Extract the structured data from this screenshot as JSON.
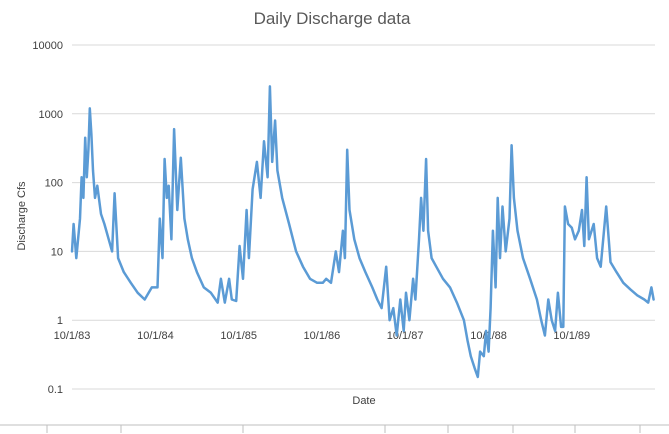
{
  "chart_data": {
    "type": "line",
    "title": "Daily Discharge data",
    "xlabel": "Date",
    "ylabel": "Discharge Cfs",
    "y_scale": "log",
    "ylim": [
      0.1,
      10000
    ],
    "y_ticks": [
      "0.1",
      "1",
      "10",
      "100",
      "1000",
      "10000"
    ],
    "xlim": [
      "1983-10-01",
      "1990-10-01"
    ],
    "x_ticks": [
      "10/1/83",
      "10/1/84",
      "10/1/85",
      "10/1/86",
      "10/1/87",
      "10/1/88",
      "10/1/89"
    ],
    "grid": true,
    "legend": "none",
    "line_color": "#5b9bd5",
    "series": [
      {
        "values": [
          [
            "1983-10-01",
            10
          ],
          [
            "1983-10-08",
            25
          ],
          [
            "1983-10-20",
            8
          ],
          [
            "1983-11-05",
            30
          ],
          [
            "1983-11-12",
            120
          ],
          [
            "1983-11-20",
            60
          ],
          [
            "1983-11-28",
            450
          ],
          [
            "1983-12-05",
            120
          ],
          [
            "1983-12-12",
            300
          ],
          [
            "1983-12-18",
            1200
          ],
          [
            "1983-12-25",
            500
          ],
          [
            "1984-01-01",
            150
          ],
          [
            "1984-01-10",
            60
          ],
          [
            "1984-01-20",
            90
          ],
          [
            "1984-02-05",
            35
          ],
          [
            "1984-02-20",
            25
          ],
          [
            "1984-03-10",
            15
          ],
          [
            "1984-03-25",
            10
          ],
          [
            "1984-04-05",
            70
          ],
          [
            "1984-04-20",
            8
          ],
          [
            "1984-05-15",
            5
          ],
          [
            "1984-06-15",
            3.5
          ],
          [
            "1984-07-15",
            2.5
          ],
          [
            "1984-08-15",
            2.0
          ],
          [
            "1984-09-15",
            3
          ],
          [
            "1984-10-10",
            3
          ],
          [
            "1984-10-20",
            30
          ],
          [
            "1984-11-01",
            8
          ],
          [
            "1984-11-10",
            220
          ],
          [
            "1984-11-20",
            60
          ],
          [
            "1984-11-28",
            90
          ],
          [
            "1984-12-10",
            15
          ],
          [
            "1984-12-22",
            600
          ],
          [
            "1985-01-05",
            40
          ],
          [
            "1985-01-20",
            230
          ],
          [
            "1985-02-05",
            30
          ],
          [
            "1985-02-20",
            15
          ],
          [
            "1985-03-10",
            8
          ],
          [
            "1985-04-01",
            5
          ],
          [
            "1985-05-01",
            3
          ],
          [
            "1985-06-01",
            2.5
          ],
          [
            "1985-07-01",
            1.8
          ],
          [
            "1985-07-15",
            4
          ],
          [
            "1985-08-01",
            1.8
          ],
          [
            "1985-08-20",
            4
          ],
          [
            "1985-09-01",
            2
          ],
          [
            "1985-09-20",
            1.9
          ],
          [
            "1985-10-05",
            12
          ],
          [
            "1985-10-20",
            4
          ],
          [
            "1985-11-05",
            40
          ],
          [
            "1985-11-15",
            8
          ],
          [
            "1985-12-01",
            80
          ],
          [
            "1985-12-20",
            200
          ],
          [
            "1986-01-05",
            60
          ],
          [
            "1986-01-20",
            400
          ],
          [
            "1986-02-05",
            120
          ],
          [
            "1986-02-15",
            2500
          ],
          [
            "1986-02-25",
            200
          ],
          [
            "1986-03-10",
            800
          ],
          [
            "1986-03-20",
            150
          ],
          [
            "1986-04-10",
            60
          ],
          [
            "1986-05-10",
            25
          ],
          [
            "1986-06-10",
            10
          ],
          [
            "1986-07-10",
            6
          ],
          [
            "1986-08-10",
            4
          ],
          [
            "1986-09-10",
            3.5
          ],
          [
            "1986-10-05",
            3.5
          ],
          [
            "1986-10-20",
            4
          ],
          [
            "1986-11-10",
            3.5
          ],
          [
            "1986-12-01",
            10
          ],
          [
            "1986-12-15",
            5
          ],
          [
            "1987-01-01",
            20
          ],
          [
            "1987-01-10",
            8
          ],
          [
            "1987-01-20",
            300
          ],
          [
            "1987-01-30",
            40
          ],
          [
            "1987-02-20",
            15
          ],
          [
            "1987-03-15",
            8
          ],
          [
            "1987-04-10",
            5
          ],
          [
            "1987-05-10",
            3
          ],
          [
            "1987-06-01",
            2
          ],
          [
            "1987-06-20",
            1.5
          ],
          [
            "1987-07-10",
            6
          ],
          [
            "1987-07-25",
            1
          ],
          [
            "1987-08-10",
            1.5
          ],
          [
            "1987-08-25",
            0.6
          ],
          [
            "1987-09-10",
            2
          ],
          [
            "1987-09-25",
            0.7
          ],
          [
            "1987-10-05",
            2.5
          ],
          [
            "1987-10-20",
            1
          ],
          [
            "1987-11-05",
            4
          ],
          [
            "1987-11-15",
            2
          ],
          [
            "1987-12-01",
            15
          ],
          [
            "1987-12-10",
            60
          ],
          [
            "1987-12-20",
            20
          ],
          [
            "1988-01-01",
            220
          ],
          [
            "1988-01-10",
            20
          ],
          [
            "1988-01-25",
            8
          ],
          [
            "1988-02-15",
            6
          ],
          [
            "1988-03-15",
            4
          ],
          [
            "1988-04-15",
            3
          ],
          [
            "1988-05-15",
            1.8
          ],
          [
            "1988-06-15",
            1
          ],
          [
            "1988-07-01",
            0.5
          ],
          [
            "1988-07-15",
            0.3
          ],
          [
            "1988-08-01",
            0.2
          ],
          [
            "1988-08-15",
            0.15
          ],
          [
            "1988-08-25",
            0.35
          ],
          [
            "1988-09-10",
            0.3
          ],
          [
            "1988-09-20",
            0.7
          ],
          [
            "1988-10-01",
            0.35
          ],
          [
            "1988-10-10",
            1.5
          ],
          [
            "1988-10-20",
            20
          ],
          [
            "1988-11-01",
            3
          ],
          [
            "1988-11-10",
            60
          ],
          [
            "1988-11-20",
            8
          ],
          [
            "1988-12-01",
            45
          ],
          [
            "1988-12-15",
            10
          ],
          [
            "1989-01-01",
            30
          ],
          [
            "1989-01-10",
            350
          ],
          [
            "1989-01-20",
            60
          ],
          [
            "1989-02-05",
            20
          ],
          [
            "1989-03-01",
            8
          ],
          [
            "1989-04-01",
            4
          ],
          [
            "1989-05-01",
            2
          ],
          [
            "1989-05-20",
            1
          ],
          [
            "1989-06-05",
            0.6
          ],
          [
            "1989-06-20",
            2
          ],
          [
            "1989-07-05",
            1
          ],
          [
            "1989-07-20",
            0.7
          ],
          [
            "1989-08-01",
            2.5
          ],
          [
            "1989-08-15",
            0.8
          ],
          [
            "1989-08-25",
            0.8
          ],
          [
            "1989-09-01",
            45
          ],
          [
            "1989-09-15",
            25
          ],
          [
            "1989-10-01",
            22
          ],
          [
            "1989-10-15",
            15
          ],
          [
            "1989-11-01",
            20
          ],
          [
            "1989-11-15",
            40
          ],
          [
            "1989-11-25",
            12
          ],
          [
            "1989-12-05",
            120
          ],
          [
            "1989-12-15",
            15
          ],
          [
            "1990-01-05",
            25
          ],
          [
            "1990-01-20",
            8
          ],
          [
            "1990-02-05",
            6
          ],
          [
            "1990-03-01",
            45
          ],
          [
            "1990-03-20",
            7
          ],
          [
            "1990-04-15",
            5
          ],
          [
            "1990-05-15",
            3.5
          ],
          [
            "1990-06-15",
            2.8
          ],
          [
            "1990-07-15",
            2.3
          ],
          [
            "1990-08-15",
            2
          ],
          [
            "1990-09-01",
            1.8
          ],
          [
            "1990-09-15",
            3
          ],
          [
            "1990-09-25",
            2
          ]
        ]
      }
    ]
  }
}
